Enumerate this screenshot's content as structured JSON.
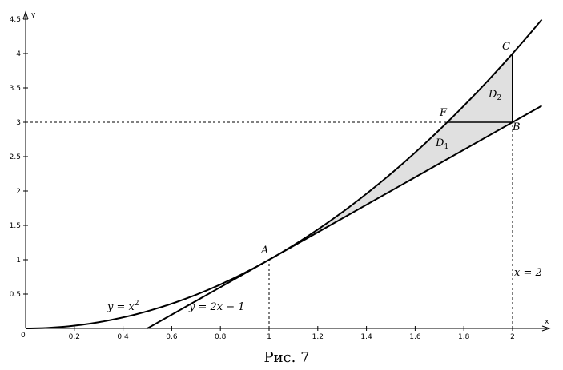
{
  "chart_data": {
    "type": "line",
    "xlabel": "x",
    "ylabel": "y",
    "origin_label": "0",
    "xlim": [
      0,
      2.12
    ],
    "ylim": [
      0,
      4.5
    ],
    "x_ticks": [
      "0.2",
      "0.4",
      "0.6",
      "0.8",
      "1",
      "1.2",
      "1.4",
      "1.6",
      "1.8",
      "2"
    ],
    "x_tick_values": [
      0.2,
      0.4,
      0.6,
      0.8,
      1,
      1.2,
      1.4,
      1.6,
      1.8,
      2
    ],
    "y_ticks": [
      "0.5",
      "1",
      "1.5",
      "2",
      "2.5",
      "3",
      "3.5",
      "4",
      "4.5"
    ],
    "y_tick_values": [
      0.5,
      1,
      1.5,
      2,
      2.5,
      3,
      3.5,
      4,
      4.5
    ],
    "curves": [
      {
        "label": "y = x",
        "label_sup": "2",
        "formula": "x^2",
        "x_range": [
          0,
          2.12
        ]
      },
      {
        "label": "y = 2x − 1",
        "formula": "2x-1",
        "x_range": [
          0.5,
          2.12
        ]
      }
    ],
    "vertical_line": {
      "label": "x = 2",
      "x": 2
    },
    "dashed_guides": [
      {
        "from": [
          1,
          0
        ],
        "to": [
          1,
          1
        ]
      },
      {
        "from": [
          0,
          3
        ],
        "to": [
          2,
          3
        ]
      },
      {
        "from": [
          2,
          0
        ],
        "to": [
          2,
          3
        ]
      }
    ],
    "points": [
      {
        "name": "A",
        "x": 1,
        "y": 1
      },
      {
        "name": "B",
        "x": 2,
        "y": 3
      },
      {
        "name": "C",
        "x": 2,
        "y": 4
      },
      {
        "name": "F",
        "x": 1.732,
        "y": 3
      }
    ],
    "regions": [
      {
        "name": "D",
        "sub": "1",
        "bounded_by": "y = x² , y = 2x − 1, y = 3",
        "fill": "#e0e0e0"
      },
      {
        "name": "D",
        "sub": "2",
        "bounded_by": "y = x² , y = 3, x = 2",
        "fill": "#e0e0e0"
      }
    ]
  },
  "caption": "Рис. 7"
}
